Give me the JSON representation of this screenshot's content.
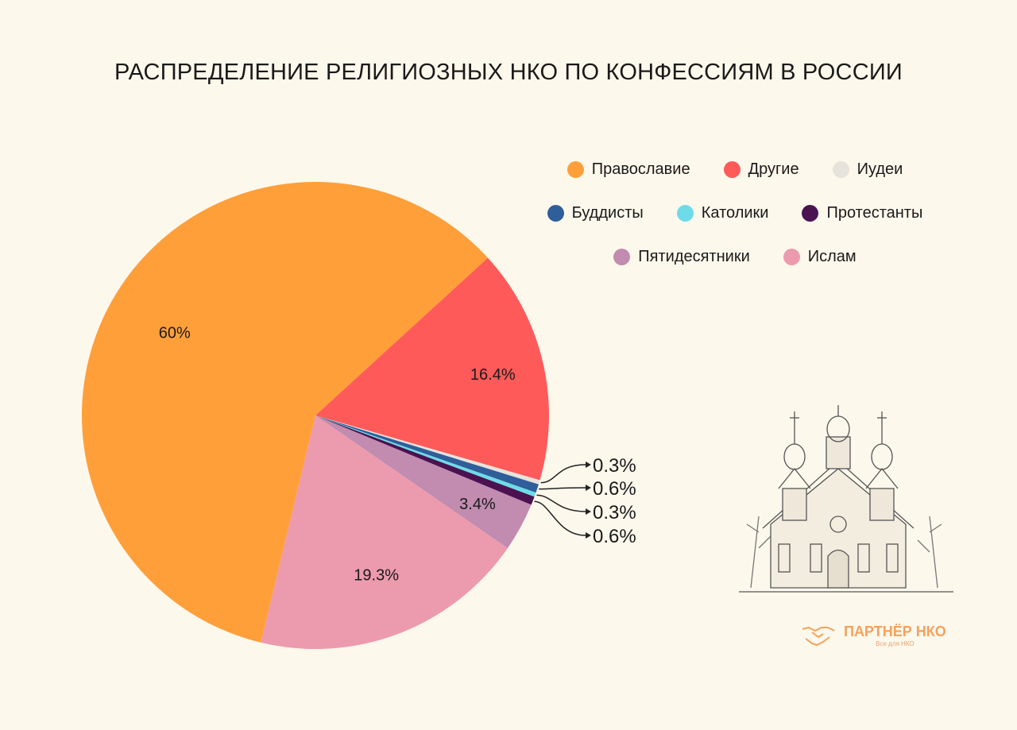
{
  "chart_data": {
    "type": "pie",
    "title": "РАСПРЕДЕЛЕНИЕ РЕЛИГИОЗНЫХ НКО ПО КОНФЕССИЯМ В РОССИИ",
    "slices": [
      {
        "name": "Православие",
        "value": 60,
        "label": "60%",
        "color": "#FF9F3A"
      },
      {
        "name": "Другие",
        "value": 16.4,
        "label": "16.4%",
        "color": "#FF5A5A"
      },
      {
        "name": "Иудеи",
        "value": 0.3,
        "label": "0.3%",
        "color": "#E6E3DC"
      },
      {
        "name": "Буддисты",
        "value": 0.6,
        "label": "0.6%",
        "color": "#2F5E9A"
      },
      {
        "name": "Католики",
        "value": 0.3,
        "label": "0.3%",
        "color": "#6DDCE8"
      },
      {
        "name": "Протестанты",
        "value": 0.6,
        "label": "0.6%",
        "color": "#4A1250"
      },
      {
        "name": "Пятидесятники",
        "value": 3.4,
        "label": "3.4%",
        "color": "#C28BB0"
      },
      {
        "name": "Ислам",
        "value": 19.3,
        "label": "19.3%",
        "color": "#EC9AAE"
      }
    ],
    "legend": {
      "placement": "top-right",
      "rows": [
        [
          "Православие",
          "Другие",
          "Иудеи"
        ],
        [
          "Буддисты",
          "Католики",
          "Протестанты"
        ],
        [
          "Пятидесятники",
          "Ислам"
        ]
      ]
    }
  },
  "logo": {
    "name": "ПАРТНЁР НКО",
    "tagline": "Все для НКО"
  }
}
